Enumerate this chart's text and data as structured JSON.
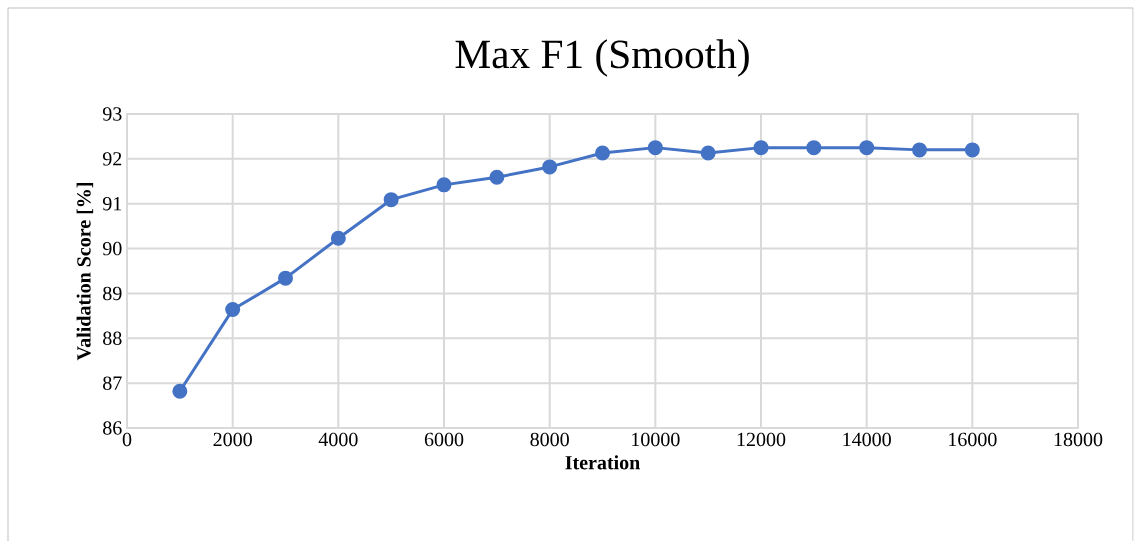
{
  "chart_data": {
    "type": "line",
    "title": "Max F1 (Smooth)",
    "xlabel": "Iteration",
    "ylabel": "Validation Score [%]",
    "x": [
      1000,
      2000,
      3000,
      4000,
      5000,
      6000,
      7000,
      8000,
      9000,
      10000,
      11000,
      12000,
      13000,
      14000,
      15000,
      16000
    ],
    "series": [
      {
        "color": "#4472c4",
        "values": [
          86.82,
          88.64,
          89.34,
          90.23,
          91.09,
          91.42,
          91.59,
          91.82,
          92.13,
          92.25,
          92.13,
          92.25,
          92.25,
          92.25,
          92.2,
          92.2
        ]
      }
    ],
    "xlim": [
      0,
      18000
    ],
    "xticks": [
      0,
      2000,
      4000,
      6000,
      8000,
      10000,
      12000,
      14000,
      16000,
      18000
    ],
    "ylim": [
      86,
      93
    ],
    "yticks": [
      86,
      87,
      88,
      89,
      90,
      91,
      92,
      93
    ],
    "grid": true,
    "marker": "circle",
    "line_style": "solid"
  }
}
